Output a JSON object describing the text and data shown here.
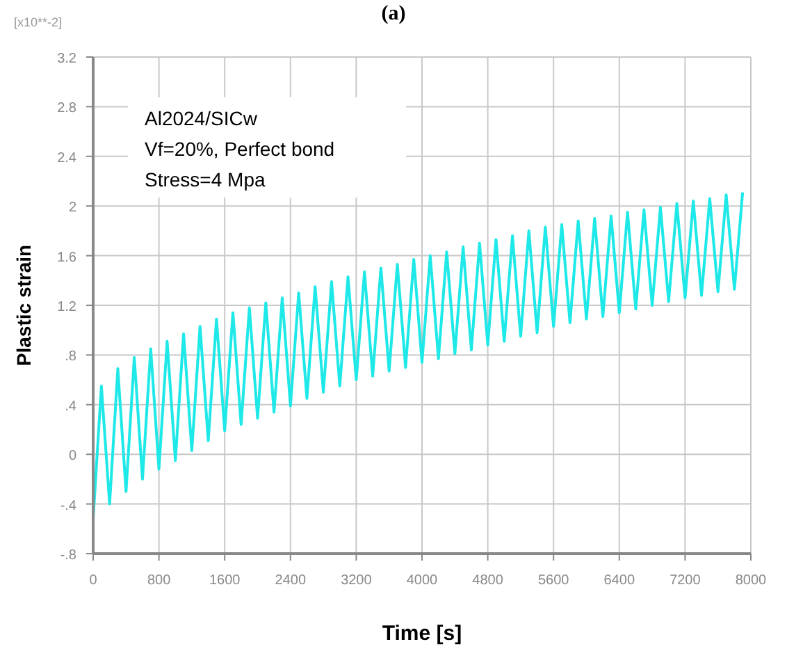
{
  "chart_data": {
    "type": "line",
    "title": "(a)",
    "xlabel": "Time [s]",
    "ylabel": "Plastic strain",
    "annotations": [
      "[x10**-2]",
      "Al2024/SICw\nVf=20%, Perfect bond\nStress=4 Mpa"
    ],
    "x": [
      0,
      100,
      200,
      300,
      400,
      500,
      600,
      700,
      800,
      900,
      1000,
      1100,
      1200,
      1300,
      1400,
      1500,
      1600,
      1700,
      1800,
      1900,
      2000,
      2100,
      2200,
      2300,
      2400,
      2500,
      2600,
      2700,
      2800,
      2900,
      3000,
      3100,
      3200,
      3300,
      3400,
      3500,
      3600,
      3700,
      3800,
      3900,
      4000,
      4100,
      4200,
      4300,
      4400,
      4500,
      4600,
      4700,
      4800,
      4900,
      5000,
      5100,
      5200,
      5300,
      5400,
      5500,
      5600,
      5700,
      5800,
      5900,
      6000,
      6100,
      6200,
      6300,
      6400,
      6500,
      6600,
      6700,
      6800,
      6900,
      7000,
      7100,
      7200,
      7300,
      7400,
      7500,
      7600,
      7700,
      7800,
      7900
    ],
    "series": [
      {
        "color": "#1ee8e8",
        "values": [
          -0.52,
          0.55,
          -0.4,
          0.69,
          -0.3,
          0.78,
          -0.2,
          0.85,
          -0.12,
          0.91,
          -0.05,
          0.97,
          0.03,
          1.03,
          0.11,
          1.09,
          0.19,
          1.14,
          0.24,
          1.18,
          0.29,
          1.22,
          0.34,
          1.26,
          0.39,
          1.3,
          0.45,
          1.35,
          0.5,
          1.39,
          0.55,
          1.43,
          0.6,
          1.47,
          0.63,
          1.5,
          0.67,
          1.53,
          0.7,
          1.57,
          0.74,
          1.6,
          0.77,
          1.63,
          0.81,
          1.67,
          0.84,
          1.7,
          0.88,
          1.73,
          0.91,
          1.76,
          0.95,
          1.8,
          0.98,
          1.83,
          1.03,
          1.85,
          1.06,
          1.88,
          1.09,
          1.9,
          1.11,
          1.92,
          1.14,
          1.95,
          1.17,
          1.97,
          1.2,
          1.99,
          1.23,
          2.02,
          1.26,
          2.04,
          1.28,
          2.06,
          1.31,
          2.09,
          1.33,
          2.11
        ]
      }
    ],
    "xlim": [
      0,
      8000
    ],
    "xticks": [
      0,
      800,
      1600,
      2400,
      3200,
      4000,
      4800,
      5600,
      6400,
      7200,
      8000
    ],
    "ylim": [
      -0.8,
      3.2
    ],
    "yticks": [
      {
        "value": -0.8,
        "label": "-.8"
      },
      {
        "value": -0.4,
        "label": "-.4"
      },
      0,
      {
        "value": 0.4,
        "label": ".4"
      },
      {
        "value": 0.8,
        "label": ".8"
      },
      1.2,
      1.6,
      2,
      2.4,
      2.8,
      3.2
    ],
    "grid": true,
    "line_style": "solid",
    "marker": "none"
  }
}
